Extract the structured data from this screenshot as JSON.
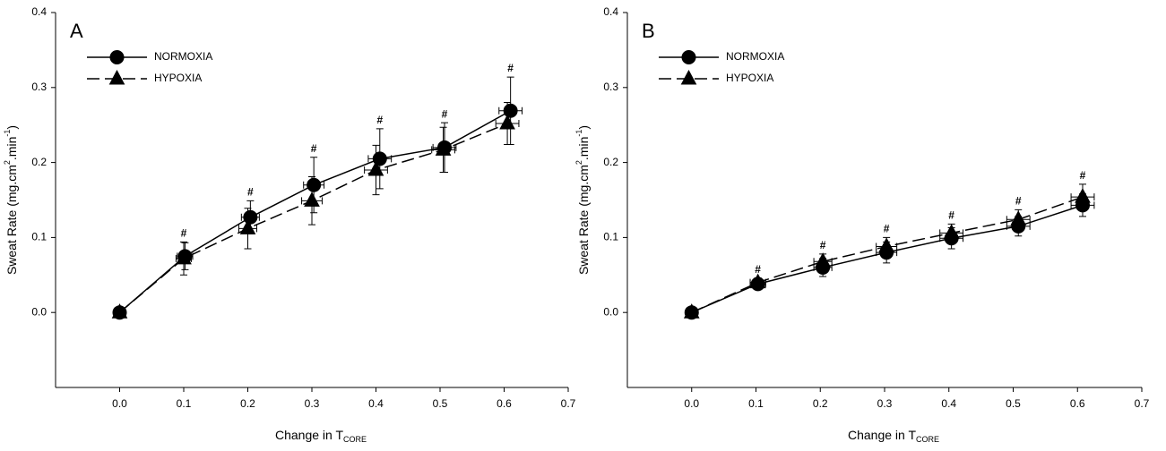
{
  "chart_data": [
    {
      "type": "line",
      "panel": "A",
      "x_label": [
        "Change in T",
        "CORE"
      ],
      "y_label": [
        "Sweat Rate (mg.cm",
        "2",
        ".min",
        "-1",
        ")"
      ],
      "xlim": [
        -0.1,
        0.7
      ],
      "ylim": [
        -0.1,
        0.4
      ],
      "xticks": [
        {
          "value": 0,
          "label": "0.0"
        },
        0.1,
        0.2,
        0.3,
        0.4,
        0.5,
        0.6,
        0.7
      ],
      "yticks": [
        {
          "value": 0,
          "label": "0.0"
        },
        0.1,
        0.2,
        0.3,
        0.4
      ],
      "series": [
        {
          "name": "NORMOXIA",
          "color": "#000000",
          "marker": "circle",
          "dash": false,
          "x": [
            0,
            0.102,
            0.204,
            0.303,
            0.406,
            0.507,
            0.61
          ],
          "values": [
            0,
            0.075,
            0.127,
            0.17,
            0.205,
            0.22,
            0.269
          ],
          "yerr": [
            0,
            0.018,
            0.022,
            0.037,
            0.04,
            0.033,
            0.045
          ],
          "xerr": [
            0,
            0.012,
            0.014,
            0.016,
            0.018,
            0.018,
            0.018
          ]
        },
        {
          "name": "HYPOXIA",
          "color": "#000000",
          "marker": "triangle",
          "dash": true,
          "x": [
            0,
            0.1,
            0.2,
            0.3,
            0.4,
            0.505,
            0.605
          ],
          "values": [
            0,
            0.072,
            0.112,
            0.149,
            0.19,
            0.217,
            0.252
          ],
          "yerr": [
            0,
            0.022,
            0.027,
            0.032,
            0.033,
            0.03,
            0.028
          ],
          "xerr": [
            0,
            0.012,
            0.014,
            0.016,
            0.018,
            0.018,
            0.018
          ]
        }
      ],
      "significance": [
        null,
        "#",
        "#",
        "#",
        "#",
        "#",
        "#"
      ]
    },
    {
      "type": "line",
      "panel": "B",
      "x_label": [
        "Change in T",
        "CORE"
      ],
      "y_label": [
        "Sweat Rate (mg.cm",
        "2",
        ".min",
        "-1",
        ")"
      ],
      "xlim": [
        -0.1,
        0.7
      ],
      "ylim": [
        -0.1,
        0.4
      ],
      "xticks": [
        {
          "value": 0,
          "label": "0.0"
        },
        0.1,
        0.2,
        0.3,
        0.4,
        0.5,
        0.6,
        0.7
      ],
      "yticks": [
        {
          "value": 0,
          "label": "0.0"
        },
        0.1,
        0.2,
        0.3,
        0.4
      ],
      "series": [
        {
          "name": "NORMOXIA",
          "color": "#000000",
          "marker": "circle",
          "dash": false,
          "x": [
            0,
            0.103,
            0.204,
            0.303,
            0.404,
            0.508,
            0.608
          ],
          "values": [
            0,
            0.038,
            0.06,
            0.08,
            0.099,
            0.115,
            0.143
          ],
          "yerr": [
            0,
            0.007,
            0.012,
            0.014,
            0.014,
            0.013,
            0.015
          ],
          "xerr": [
            0,
            0.012,
            0.014,
            0.016,
            0.018,
            0.018,
            0.018
          ]
        },
        {
          "name": "HYPOXIA",
          "color": "#000000",
          "marker": "triangle",
          "dash": true,
          "x": [
            0,
            0.103,
            0.204,
            0.303,
            0.404,
            0.508,
            0.608
          ],
          "values": [
            0,
            0.04,
            0.068,
            0.088,
            0.106,
            0.124,
            0.154
          ],
          "yerr": [
            0,
            0.006,
            0.01,
            0.012,
            0.012,
            0.013,
            0.017
          ],
          "xerr": [
            0,
            0.012,
            0.014,
            0.016,
            0.018,
            0.018,
            0.018
          ]
        }
      ],
      "significance": [
        null,
        "#",
        "#",
        "#",
        "#",
        "#",
        "#"
      ]
    }
  ]
}
